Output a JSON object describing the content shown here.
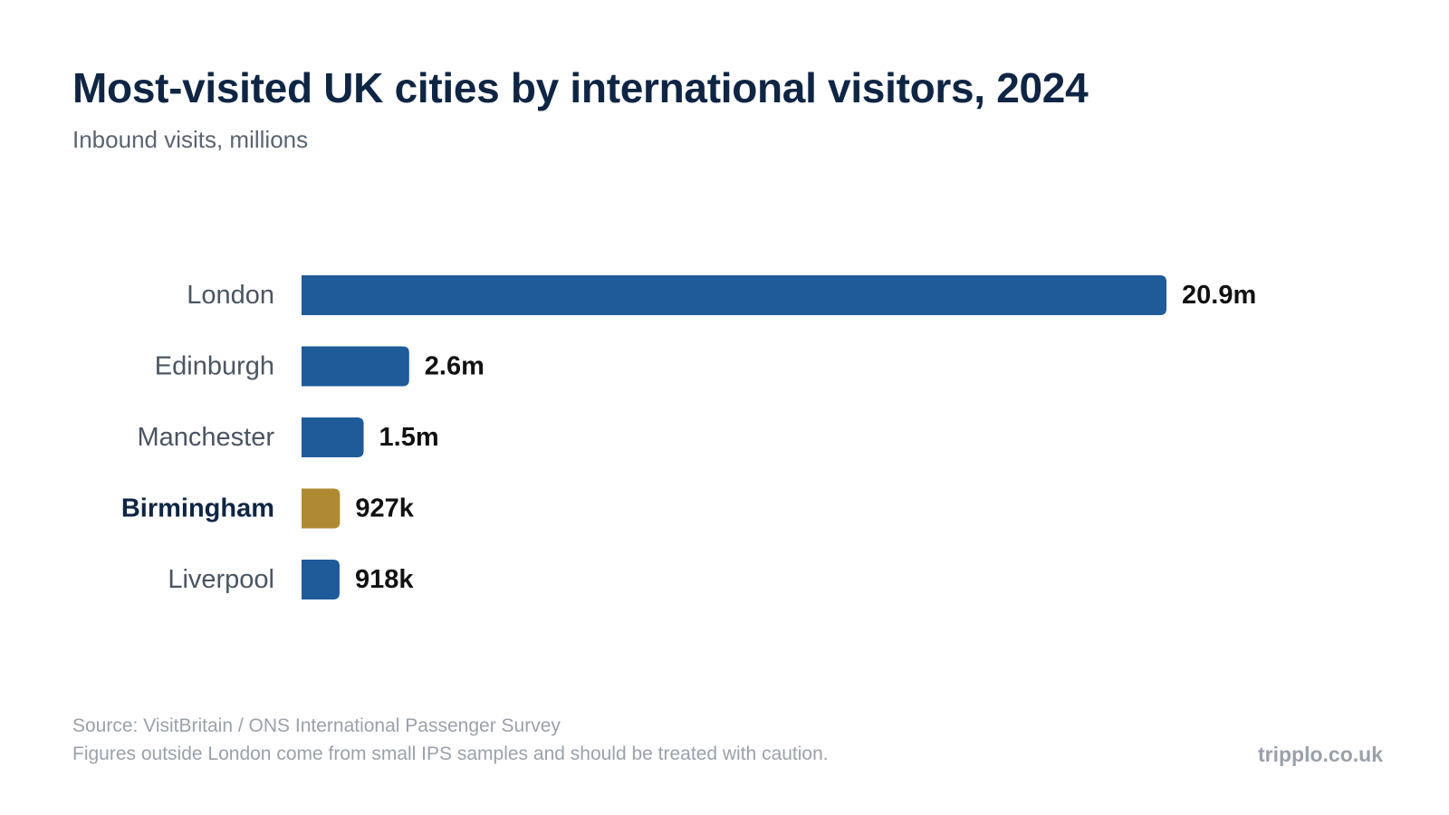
{
  "title": "Most-visited UK cities by international visitors, 2024",
  "subtitle": "Inbound visits, millions",
  "colors": {
    "bar_default": "#1f5a99",
    "bar_highlight": "#b08a33",
    "category_label": "#4a5563",
    "category_label_highlight": "#0f2544",
    "value_label": "#111111"
  },
  "chart_data": {
    "type": "bar",
    "orientation": "horizontal",
    "categories": [
      "London",
      "Edinburgh",
      "Manchester",
      "Birmingham",
      "Liverpool"
    ],
    "values": [
      20.9,
      2.6,
      1.5,
      0.927,
      0.918
    ],
    "value_labels": [
      "20.9m",
      "2.6m",
      "1.5m",
      "927k",
      "918k"
    ],
    "unit": "millions",
    "highlight": "Birmingham",
    "xlim": [
      0,
      20.9
    ],
    "grid": false,
    "legend": "none"
  },
  "footer": {
    "source": "Source: VisitBritain / ONS International Passenger Survey",
    "note": "Figures outside London come from small IPS samples and should be treated with caution.",
    "brand": "tripplo.co.uk"
  }
}
